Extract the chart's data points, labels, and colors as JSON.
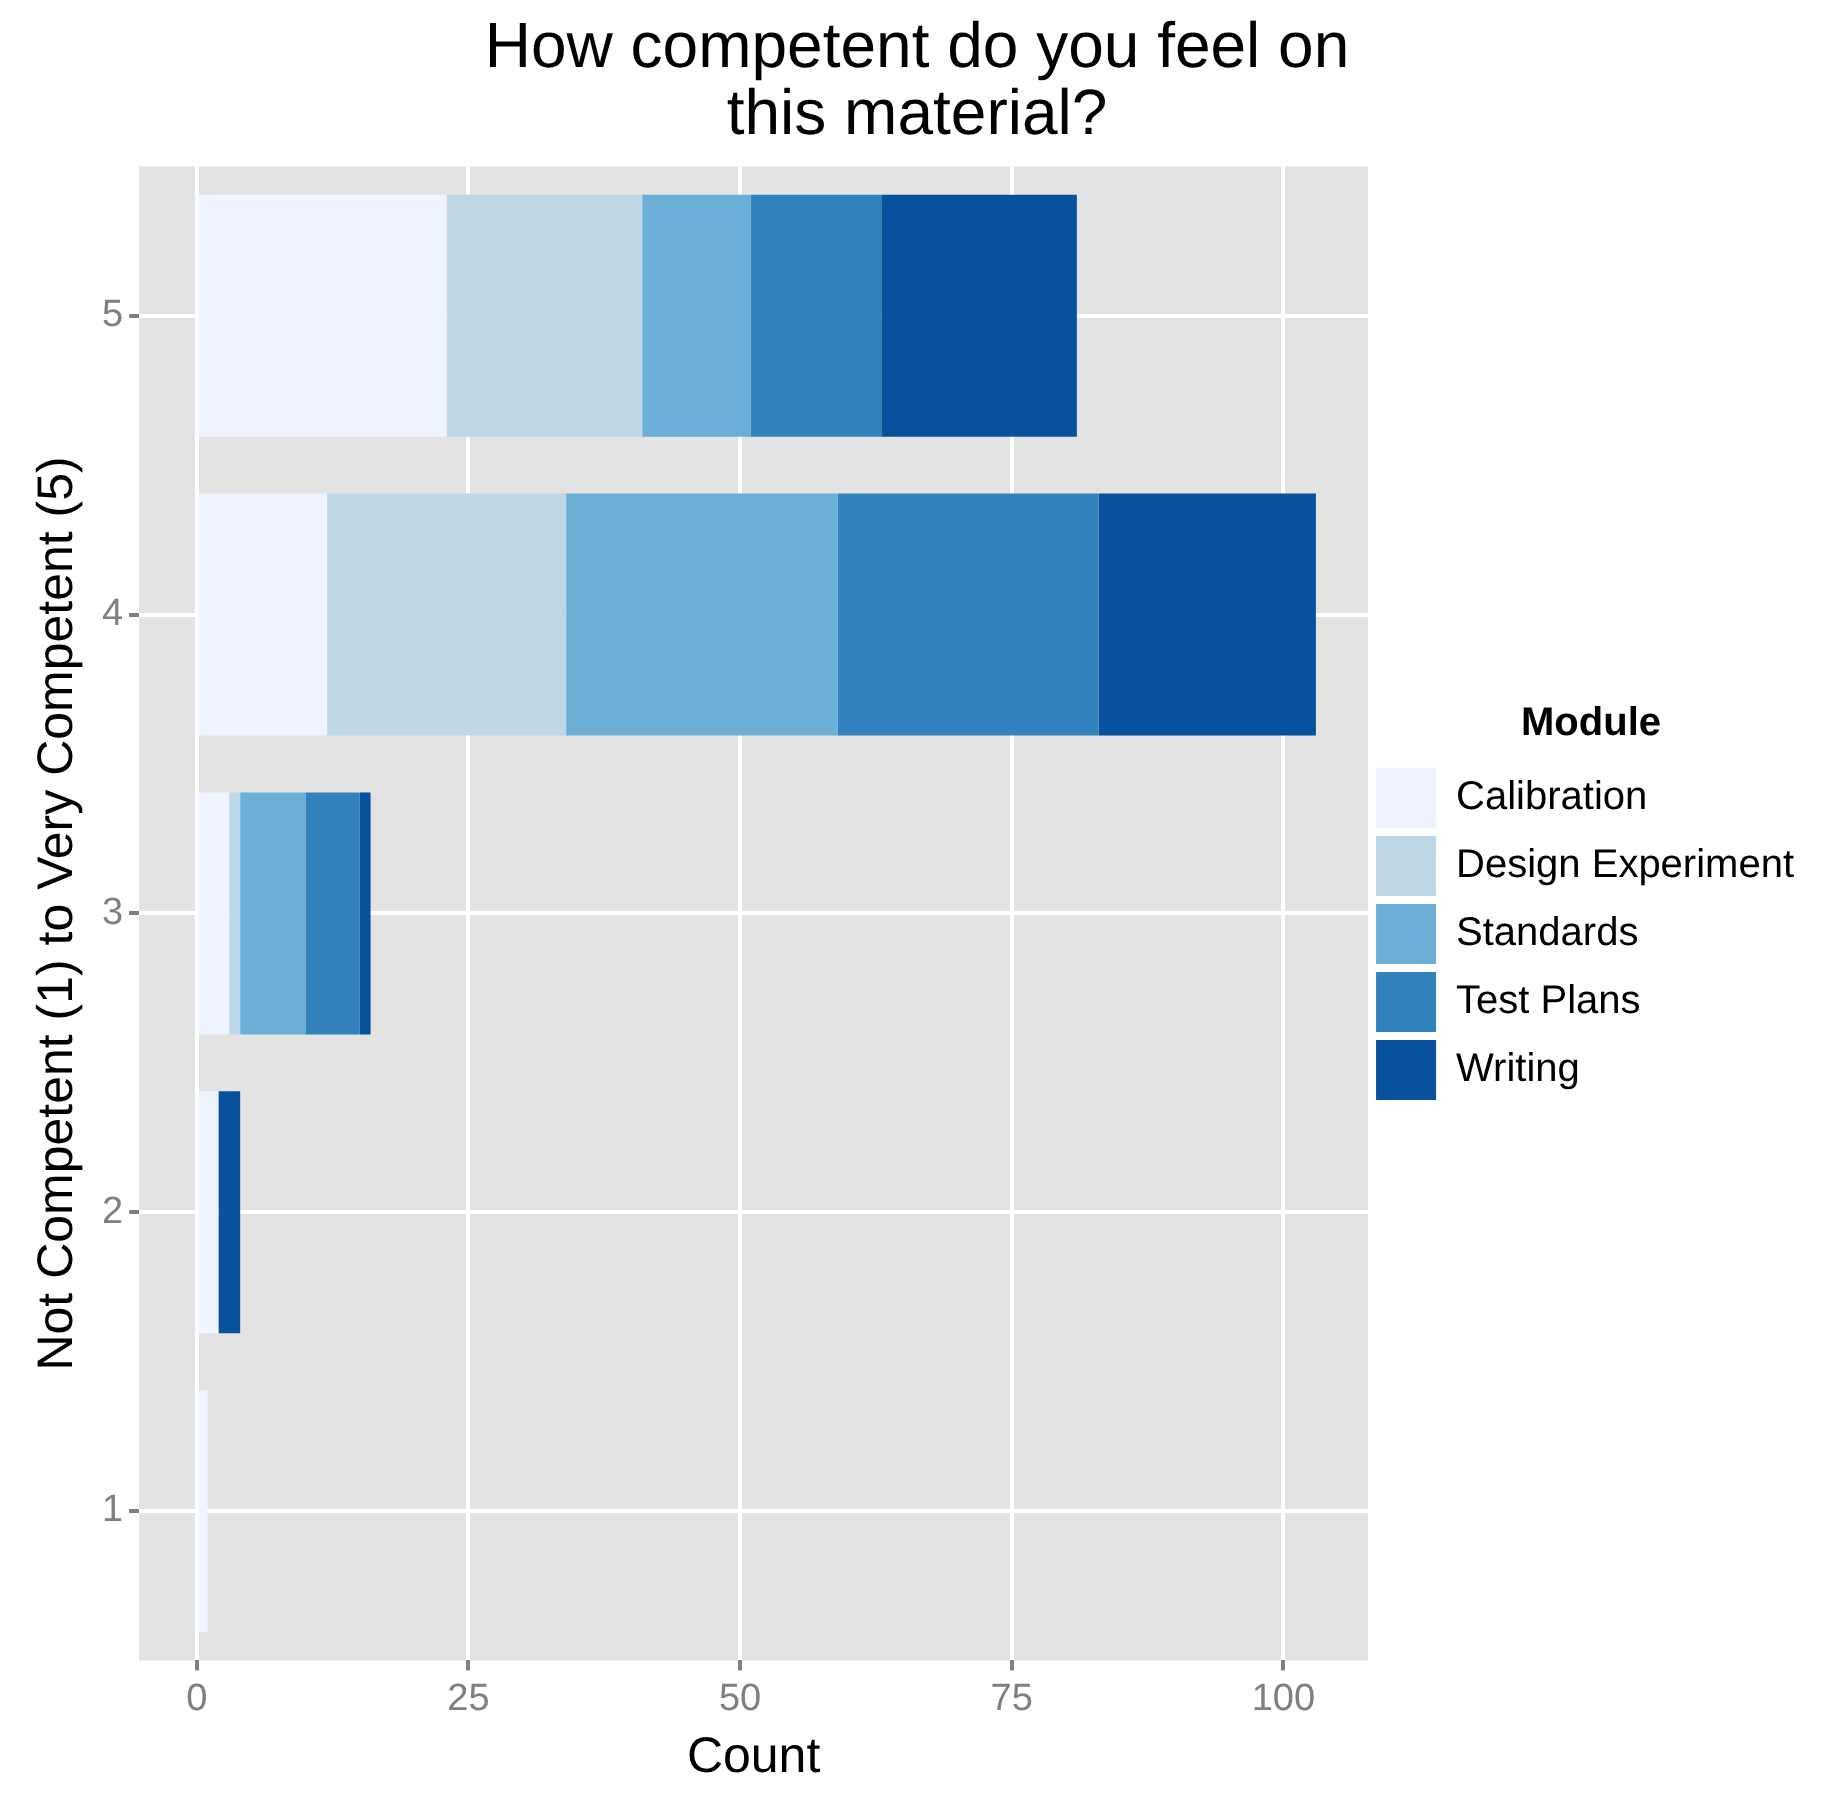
{
  "chart_data": {
    "type": "bar",
    "orientation": "horizontal",
    "stacked": true,
    "title": "How competent do you feel on this material?",
    "xlabel": "Count",
    "ylabel": "Not Competent (1) to Very Competent (5)",
    "legend_title": "Module",
    "legend": "right",
    "grid": true,
    "categories": [
      "5",
      "4",
      "3",
      "2",
      "1"
    ],
    "xlim": [
      -5.3,
      107.8
    ],
    "xticks": [
      0,
      25,
      50,
      75,
      100
    ],
    "series": [
      {
        "name": "Calibration",
        "color": "#eff3ff",
        "values": [
          23,
          12,
          3,
          2,
          1
        ]
      },
      {
        "name": "Design Experiment",
        "color": "#bdd7e7",
        "values": [
          18,
          22,
          1,
          0,
          0
        ]
      },
      {
        "name": "Standards",
        "color": "#6baed6",
        "values": [
          10,
          25,
          6,
          0,
          0
        ]
      },
      {
        "name": "Test Plans",
        "color": "#3182bd",
        "values": [
          12,
          24,
          5,
          0,
          0
        ]
      },
      {
        "name": "Writing",
        "color": "#08519c",
        "values": [
          18,
          20,
          1,
          2,
          0
        ]
      }
    ]
  }
}
